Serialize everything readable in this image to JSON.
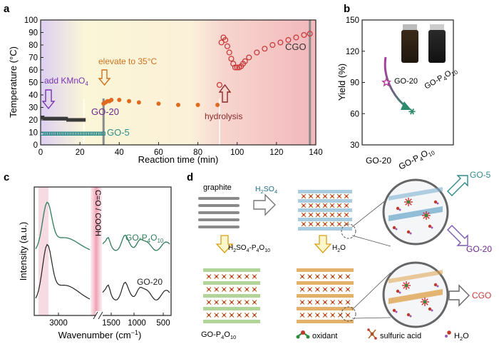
{
  "panels": {
    "a": "a",
    "b": "b",
    "c": "c",
    "d": "d"
  },
  "chart_data": [
    {
      "panel": "a",
      "type": "scatter",
      "xlabel": "Reaction time (min)",
      "ylabel": "Temperature (°C)",
      "xlim": [
        0,
        140
      ],
      "ylim": [
        0,
        100
      ],
      "xticks": [
        "0",
        "20",
        "40",
        "60",
        "80",
        "100",
        "120",
        "140"
      ],
      "yticks": [
        "0",
        "10",
        "20",
        "30",
        "40",
        "50",
        "60",
        "70",
        "80",
        "90",
        "100"
      ],
      "stage_markers": [
        22,
        32,
        91,
        137
      ],
      "annotations": {
        "add": "add KMnO",
        "add_sub": "4",
        "elevate": "elevate to 35°C",
        "hydrolysis": "hydrolysis",
        "go20": "GO-20",
        "go5": "GO-5",
        "cgo": "CGO"
      },
      "series": [
        {
          "name": "GO-20",
          "color": "#3a3a3a",
          "marker": "square",
          "x": [
            1,
            2,
            3,
            4,
            5,
            6,
            7,
            8,
            9,
            10,
            11,
            12,
            13,
            14,
            15,
            16,
            17,
            18,
            19,
            20,
            21,
            22
          ],
          "y": [
            22,
            21,
            21,
            21,
            21,
            21,
            21,
            21,
            21,
            21,
            21,
            21,
            21,
            20,
            20,
            20,
            20,
            20,
            20,
            20,
            20,
            20
          ]
        },
        {
          "name": "GO-5",
          "color": "#2e8b8b",
          "marker": "open-square",
          "x": [
            1,
            2,
            3,
            4,
            5,
            6,
            7,
            8,
            9,
            10,
            11,
            12,
            13,
            14,
            15,
            16,
            17,
            18,
            19,
            20,
            21,
            22,
            23,
            24,
            25,
            26,
            27,
            28,
            29,
            30,
            31,
            32
          ],
          "y": [
            9,
            9,
            9,
            9,
            9,
            9,
            9,
            9,
            9,
            9,
            9,
            9,
            9,
            9,
            9,
            9,
            9,
            9,
            9,
            9,
            9,
            9,
            9,
            9,
            9,
            9,
            9,
            9,
            9,
            9,
            9,
            9
          ]
        },
        {
          "name": "elevate",
          "color": "#e06b1e",
          "marker": "circle",
          "x": [
            32,
            33,
            34,
            35,
            36,
            40,
            45,
            50,
            60,
            70,
            80,
            90
          ],
          "y": [
            33,
            34,
            35,
            35,
            36,
            36,
            35,
            34,
            33,
            32,
            32,
            32
          ]
        },
        {
          "name": "CGO",
          "color": "#c83a3a",
          "marker": "open-circle",
          "x": [
            91,
            92,
            93,
            94,
            95,
            96,
            97,
            98,
            99,
            100,
            101,
            102,
            103,
            104,
            106,
            110,
            114,
            118,
            122,
            126,
            130,
            134,
            137
          ],
          "y": [
            48,
            82,
            86,
            84,
            79,
            74,
            69,
            65,
            62,
            62,
            62,
            63,
            65,
            67,
            70,
            74,
            77,
            80,
            82,
            84,
            86,
            88,
            89
          ]
        }
      ]
    },
    {
      "panel": "b",
      "type": "scatter",
      "ylabel": "Yield (%)",
      "ylim": [
        30,
        150
      ],
      "yticks": [
        "30",
        "60",
        "90",
        "120",
        "150"
      ],
      "categories": [
        "GO-20",
        "GO-P"
      ],
      "cat_subs": [
        "",
        "4"
      ],
      "cat_tails": [
        "",
        "O"
      ],
      "cat_subs2": [
        "",
        "10"
      ],
      "values": [
        90,
        62
      ],
      "colors": [
        "#b0399e",
        "#2e8b6b"
      ],
      "vial_labels": [
        "GO-20",
        "GO-P"
      ],
      "vial_sub": "4",
      "vial_tail": "O",
      "vial_sub2": "10"
    },
    {
      "panel": "c",
      "type": "line",
      "xlabel": "Wavenumber (cm",
      "xlabel_sup": "−1",
      "xlabel_tail": ")",
      "ylabel": "Intensity (a.u.)",
      "xticks": [
        "3000",
        "1500",
        "1000",
        "500"
      ],
      "band_label": "C=O / COOH",
      "series": [
        {
          "name": "GO-P",
          "sub": "4",
          "tail": "O",
          "sub2": "10",
          "color": "#2e7d5b"
        },
        {
          "name": "GO-20",
          "color": "#2a2a2a"
        }
      ]
    }
  ],
  "diagram": {
    "graphite": "graphite",
    "h2so4": "H",
    "h2so4_sub": "2",
    "h2so4_tail": "SO",
    "h2so4_sub2": "4",
    "h2so4p2o5": "H",
    "h2so4p2o5_sub": "2",
    "h2so4p2o5_t1": "SO",
    "h2so4p2o5_sub2": "4",
    "h2so4p2o5_t2": "-P",
    "h2so4p2o5_sub3": "4",
    "h2so4p2o5_t3": "O",
    "h2so4p2o5_sub4": "10",
    "h2o": "H",
    "h2o_sub": "2",
    "h2o_tail": "O",
    "gop": "GO-P",
    "gop_sub": "4",
    "gop_tail": "O",
    "gop_sub2": "10",
    "go5": "GO-5",
    "go20": "GO-20",
    "cgo": "CGO",
    "legend_oxidant": "oxidant",
    "legend_acid": "sulfuric acid",
    "legend_water": "H",
    "legend_water_sub": "2",
    "legend_water_tail": "O"
  }
}
